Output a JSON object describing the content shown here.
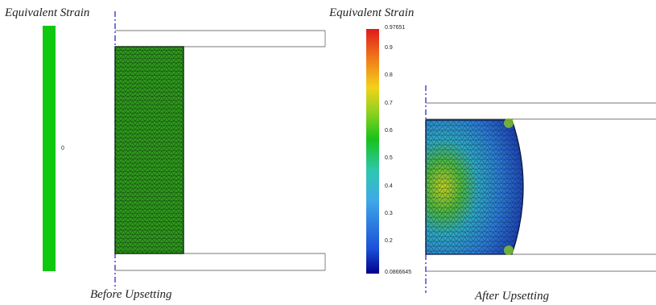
{
  "left_panel": {
    "legend_title": "Equivalent Strain",
    "legend_value": "0",
    "legend_color": "#11c811",
    "caption": "Before Upsetting"
  },
  "right_panel": {
    "legend_title": "Equivalent Strain",
    "legend_max": "0.97651",
    "legend_min": "0.0866645",
    "legend_ticks": [
      "0.9",
      "0.8",
      "0.7",
      "0.6",
      "0.5",
      "0.4",
      "0.3",
      "0.2"
    ],
    "caption": "After Upsetting"
  },
  "colors": {
    "axis_line": "#2a2ad0",
    "die_outline": "#777777",
    "mesh_fill_initial": "#2f9a1c",
    "mesh_line": "#0b2d0b",
    "colormap": [
      "#00008b",
      "#1b4fd8",
      "#3fa9e8",
      "#2ec7b0",
      "#18c21a",
      "#8fd21f",
      "#f2d21a",
      "#f07a1a",
      "#e01a1a"
    ]
  }
}
